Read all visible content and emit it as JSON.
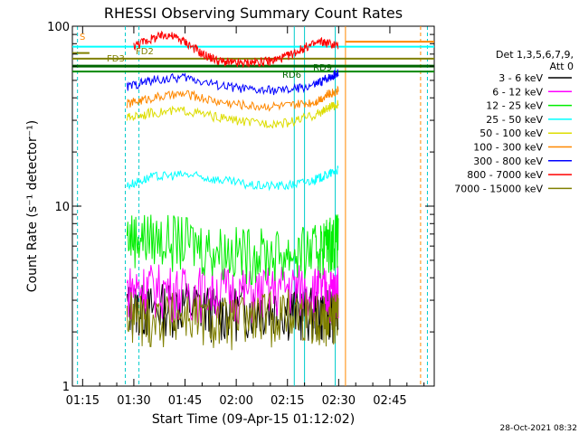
{
  "chart_data": {
    "type": "line",
    "title": "RHESSI Observing Summary Count Rates",
    "xlabel": "Start Time (09-Apr-15 01:12:02)",
    "ylabel": "Count Rate (s⁻¹ detector⁻¹)",
    "yscale": "log",
    "ylim": [
      1,
      100
    ],
    "xlim_minutes": [
      72,
      178
    ],
    "x_ticks": [
      {
        "label": "01:15",
        "minute": 75
      },
      {
        "label": "01:30",
        "minute": 90
      },
      {
        "label": "01:45",
        "minute": 105
      },
      {
        "label": "02:00",
        "minute": 120
      },
      {
        "label": "02:15",
        "minute": 135
      },
      {
        "label": "02:30",
        "minute": 150
      },
      {
        "label": "02:45",
        "minute": 165
      }
    ],
    "y_ticks": [
      {
        "label": "1",
        "value": 1
      },
      {
        "label": "10",
        "value": 10
      },
      {
        "label": "100",
        "value": 100
      }
    ],
    "legend": {
      "header": [
        "Det 1,3,5,6,7,9,",
        "Att 0"
      ],
      "placement": "right"
    },
    "series": [
      {
        "name": "3 - 6 keV",
        "color": "#000000",
        "x": [
          88,
          95,
          105,
          115,
          125,
          135,
          143,
          147,
          150
        ],
        "y": [
          2.8,
          2.7,
          2.9,
          2.6,
          2.8,
          2.7,
          2.6,
          2.7,
          2.6
        ]
      },
      {
        "name": "6 - 12 keV",
        "color": "#ff00ff",
        "x": [
          88,
          95,
          105,
          115,
          125,
          135,
          143,
          147,
          150
        ],
        "y": [
          3.5,
          3.6,
          3.4,
          3.5,
          3.3,
          3.6,
          3.5,
          3.4,
          3.5
        ]
      },
      {
        "name": "12 - 25 keV",
        "color": "#00ee00",
        "x": [
          88,
          95,
          105,
          115,
          125,
          135,
          143,
          147,
          150
        ],
        "y": [
          7.0,
          6.8,
          6.5,
          5.8,
          5.6,
          5.5,
          5.8,
          6.5,
          6.8
        ]
      },
      {
        "name": "25 - 50 keV",
        "color": "#00ffff",
        "x": [
          88,
          95,
          105,
          115,
          125,
          135,
          143,
          147,
          150
        ],
        "y": [
          13,
          14.5,
          15,
          14,
          13,
          13,
          14,
          15,
          16
        ]
      },
      {
        "name": "50 - 100 keV",
        "color": "#dddd00",
        "x": [
          88,
          95,
          105,
          115,
          125,
          135,
          143,
          147,
          150
        ],
        "y": [
          31,
          33,
          34,
          31,
          29,
          29,
          32,
          35,
          37
        ]
      },
      {
        "name": "100 - 300 keV",
        "color": "#ff8800",
        "x": [
          88,
          95,
          105,
          115,
          125,
          135,
          143,
          147,
          150
        ],
        "y": [
          37,
          40,
          42,
          38,
          36,
          36,
          38,
          42,
          44
        ]
      },
      {
        "name": "300 - 800 keV",
        "color": "#0000ff",
        "x": [
          88,
          95,
          105,
          115,
          125,
          135,
          143,
          147,
          150
        ],
        "y": [
          46,
          50,
          52,
          47,
          44,
          44,
          47,
          52,
          55
        ]
      },
      {
        "name": "800 - 7000 keV",
        "color": "#ff0000",
        "x": [
          90,
          95,
          100,
          105,
          110,
          115,
          120,
          125,
          130,
          135,
          140,
          145,
          150
        ],
        "y": [
          78,
          85,
          90,
          82,
          70,
          64,
          62,
          63,
          64,
          68,
          76,
          82,
          78
        ]
      },
      {
        "name": "7000 - 15000 keV",
        "color": "#808000",
        "x": [
          88,
          95,
          105,
          115,
          125,
          135,
          143,
          147,
          150
        ],
        "y": [
          2.5,
          2.4,
          2.5,
          2.3,
          2.4,
          2.6,
          2.5,
          2.4,
          2.5
        ]
      }
    ],
    "annotations": [
      {
        "text": "S",
        "color": "#ff8800"
      },
      {
        "text": "FD3",
        "color": "#808000"
      },
      {
        "text": "FD2",
        "color": "#808000"
      },
      {
        "text": "RD6",
        "color": "#006600"
      },
      {
        "text": "RD9",
        "color": "#006600"
      }
    ]
  },
  "footer": {
    "timestamp": "28-Oct-2021 08:32"
  }
}
